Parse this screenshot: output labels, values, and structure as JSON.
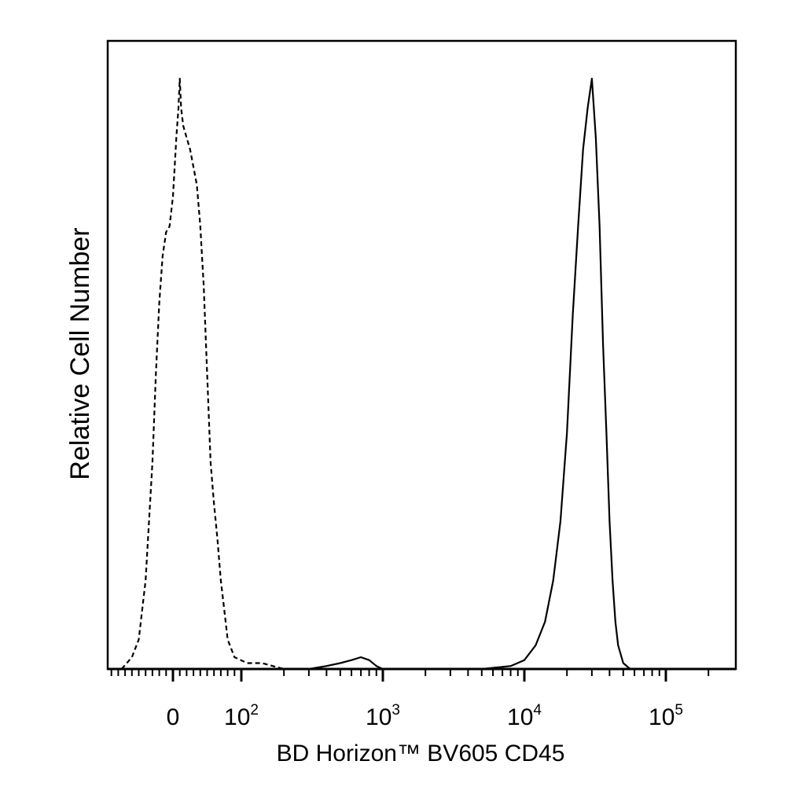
{
  "chart_data": {
    "type": "line",
    "title": "",
    "xlabel": "BD Horizon™ BV605 CD45",
    "ylabel": "Relative Cell Number",
    "x_scale": "biexponential",
    "xlim": [
      -300,
      250000
    ],
    "ylim": [
      0,
      100
    ],
    "grid": false,
    "legend": "none",
    "x_tick_labels": [
      {
        "value": 0,
        "base": "0",
        "exp": ""
      },
      {
        "value": 100,
        "base": "10",
        "exp": "2"
      },
      {
        "value": 1000,
        "base": "10",
        "exp": "3"
      },
      {
        "value": 10000,
        "base": "10",
        "exp": "4"
      },
      {
        "value": 100000,
        "base": "10",
        "exp": "5"
      }
    ],
    "series": [
      {
        "style": "dashed",
        "points": [
          [
            -75,
            0
          ],
          [
            -60,
            2
          ],
          [
            -50,
            5
          ],
          [
            -40,
            15
          ],
          [
            -30,
            35
          ],
          [
            -25,
            50
          ],
          [
            -20,
            62
          ],
          [
            -15,
            70
          ],
          [
            -10,
            74
          ],
          [
            -5,
            75
          ],
          [
            0,
            80
          ],
          [
            3,
            86
          ],
          [
            5,
            90
          ],
          [
            8,
            95
          ],
          [
            10,
            100
          ],
          [
            12,
            95
          ],
          [
            15,
            92
          ],
          [
            20,
            90
          ],
          [
            25,
            88
          ],
          [
            30,
            85
          ],
          [
            35,
            82
          ],
          [
            40,
            75
          ],
          [
            45,
            65
          ],
          [
            50,
            50
          ],
          [
            55,
            35
          ],
          [
            60,
            28
          ],
          [
            65,
            22
          ],
          [
            70,
            15
          ],
          [
            75,
            10
          ],
          [
            80,
            5
          ],
          [
            90,
            2
          ],
          [
            110,
            1
          ],
          [
            140,
            1
          ],
          [
            200,
            0
          ],
          [
            500,
            0
          ],
          [
            2000,
            0
          ],
          [
            10000,
            0
          ],
          [
            30000,
            0
          ],
          [
            60000,
            0
          ]
        ]
      },
      {
        "style": "solid",
        "points": [
          [
            100,
            0
          ],
          [
            300,
            0
          ],
          [
            400,
            0.5
          ],
          [
            500,
            1
          ],
          [
            600,
            1.5
          ],
          [
            700,
            2
          ],
          [
            800,
            1.5
          ],
          [
            900,
            0.5
          ],
          [
            1000,
            0
          ],
          [
            5000,
            0
          ],
          [
            8000,
            0.5
          ],
          [
            10000,
            1.5
          ],
          [
            12000,
            4
          ],
          [
            14000,
            8
          ],
          [
            16000,
            15
          ],
          [
            18000,
            25
          ],
          [
            20000,
            40
          ],
          [
            22000,
            60
          ],
          [
            24000,
            75
          ],
          [
            26000,
            88
          ],
          [
            28000,
            95
          ],
          [
            30000,
            100
          ],
          [
            32000,
            90
          ],
          [
            34000,
            75
          ],
          [
            36000,
            55
          ],
          [
            38000,
            40
          ],
          [
            40000,
            25
          ],
          [
            42000,
            15
          ],
          [
            44000,
            8
          ],
          [
            46000,
            4
          ],
          [
            50000,
            1
          ],
          [
            56000,
            0
          ],
          [
            60000,
            0
          ]
        ]
      }
    ]
  }
}
